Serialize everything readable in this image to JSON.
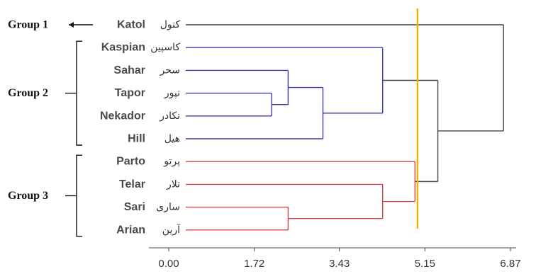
{
  "chart_data": {
    "type": "dendrogram",
    "orientation": "horizontal",
    "leaves": [
      {
        "name": "Katol",
        "name_fa": "کتول",
        "color": "#444444"
      },
      {
        "name": "Kaspian",
        "name_fa": "کاسپین",
        "color": "#3a3ab0"
      },
      {
        "name": "Sahar",
        "name_fa": "سحر",
        "color": "#3a3ab0"
      },
      {
        "name": "Tapor",
        "name_fa": "تپور",
        "color": "#3a3ab0"
      },
      {
        "name": "Nekador",
        "name_fa": "نکادر",
        "color": "#3a3ab0"
      },
      {
        "name": "Hill",
        "name_fa": "هیل",
        "color": "#3a3ab0"
      },
      {
        "name": "Parto",
        "name_fa": "پرتو",
        "color": "#d94545"
      },
      {
        "name": "Telar",
        "name_fa": "تلار",
        "color": "#d94545"
      },
      {
        "name": "Sari",
        "name_fa": "ساری",
        "color": "#d94545"
      },
      {
        "name": "Arian",
        "name_fa": "آرین",
        "color": "#d94545"
      }
    ],
    "merges": [
      {
        "a": "Tapor",
        "b": "Nekador",
        "height": 2.07,
        "color": "#3a3ab0",
        "id": "n1"
      },
      {
        "a": "Sahar",
        "b": "n1",
        "height": 2.4,
        "color": "#3a3ab0",
        "id": "n2"
      },
      {
        "a": "n2",
        "b": "Hill",
        "height": 3.1,
        "color": "#3a3ab0",
        "id": "n3"
      },
      {
        "a": "Kaspian",
        "b": "n3",
        "height": 4.3,
        "color": "#3a3ab0",
        "id": "n4"
      },
      {
        "a": "Sari",
        "b": "Arian",
        "height": 2.4,
        "color": "#d94545",
        "id": "n5"
      },
      {
        "a": "Telar",
        "b": "n5",
        "height": 4.3,
        "color": "#d94545",
        "id": "n6"
      },
      {
        "a": "Parto",
        "b": "n6",
        "height": 4.95,
        "color": "#d94545",
        "id": "n7"
      },
      {
        "a": "n4",
        "b": "n7",
        "height": 5.41,
        "color": "#444444",
        "id": "n8"
      },
      {
        "a": "Katol",
        "b": "n8",
        "height": 6.73,
        "color": "#444444",
        "id": "n9"
      }
    ],
    "cut_line": {
      "value": 5.0,
      "color": "#f0b400"
    },
    "groups": [
      {
        "label": "Group 1",
        "leaves": [
          "Katol"
        ]
      },
      {
        "label": "Group 2",
        "leaves": [
          "Kaspian",
          "Sahar",
          "Tapor",
          "Nekador",
          "Hill"
        ]
      },
      {
        "label": "Group 3",
        "leaves": [
          "Parto",
          "Telar",
          "Sari",
          "Arian"
        ]
      }
    ],
    "x_ticks": [
      "0.00",
      "1.72",
      "3.43",
      "5.15",
      "6.87"
    ],
    "xlim": [
      0,
      6.87
    ]
  }
}
